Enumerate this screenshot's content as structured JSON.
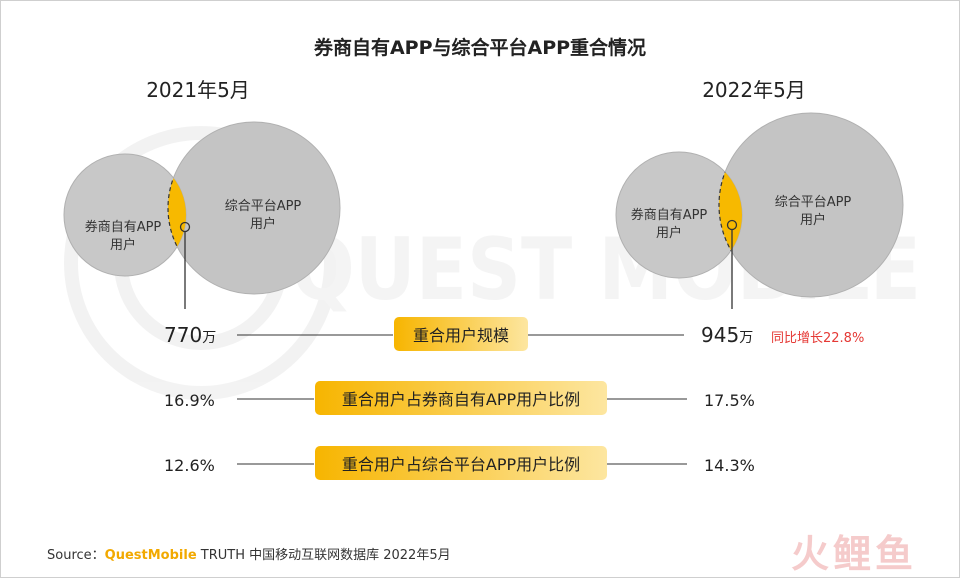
{
  "chart_data": {
    "type": "venn",
    "title": "券商自有APP与综合平台APP重合情况",
    "periods": [
      {
        "label": "2021年5月",
        "set_a": "券商自有APP用户",
        "set_b": "综合平台APP用户",
        "overlap_value": "770",
        "overlap_unit": "万"
      },
      {
        "label": "2022年5月",
        "set_a": "券商自有APP用户",
        "set_b": "综合平台APP用户",
        "overlap_value": "945",
        "overlap_unit": "万",
        "growth_note": "同比增长22.8%"
      }
    ],
    "metrics": [
      {
        "label": "重合用户规模",
        "v2021": "770万",
        "v2022": "945万"
      },
      {
        "label": "重合用户占券商自有APP用户比例",
        "v2021": "16.9%",
        "v2022": "17.5%"
      },
      {
        "label": "重合用户占综合平台APP用户比例",
        "v2021": "12.6%",
        "v2022": "14.3%"
      }
    ],
    "colors": {
      "circle": "#c4c4c4",
      "overlap": "#f7b900",
      "badge_dark": "#f7b500",
      "badge_light": "#fde6a0",
      "growth_text": "#e53935",
      "brand": "#f2a900"
    }
  },
  "source": {
    "label": "Source：",
    "brand": "QuestMobile",
    "text": " TRUTH 中国移动互联网数据库 2022年5月"
  },
  "watermark": {
    "text": "QUEST MOBILE"
  },
  "logo": {
    "text": "火鲤鱼"
  }
}
